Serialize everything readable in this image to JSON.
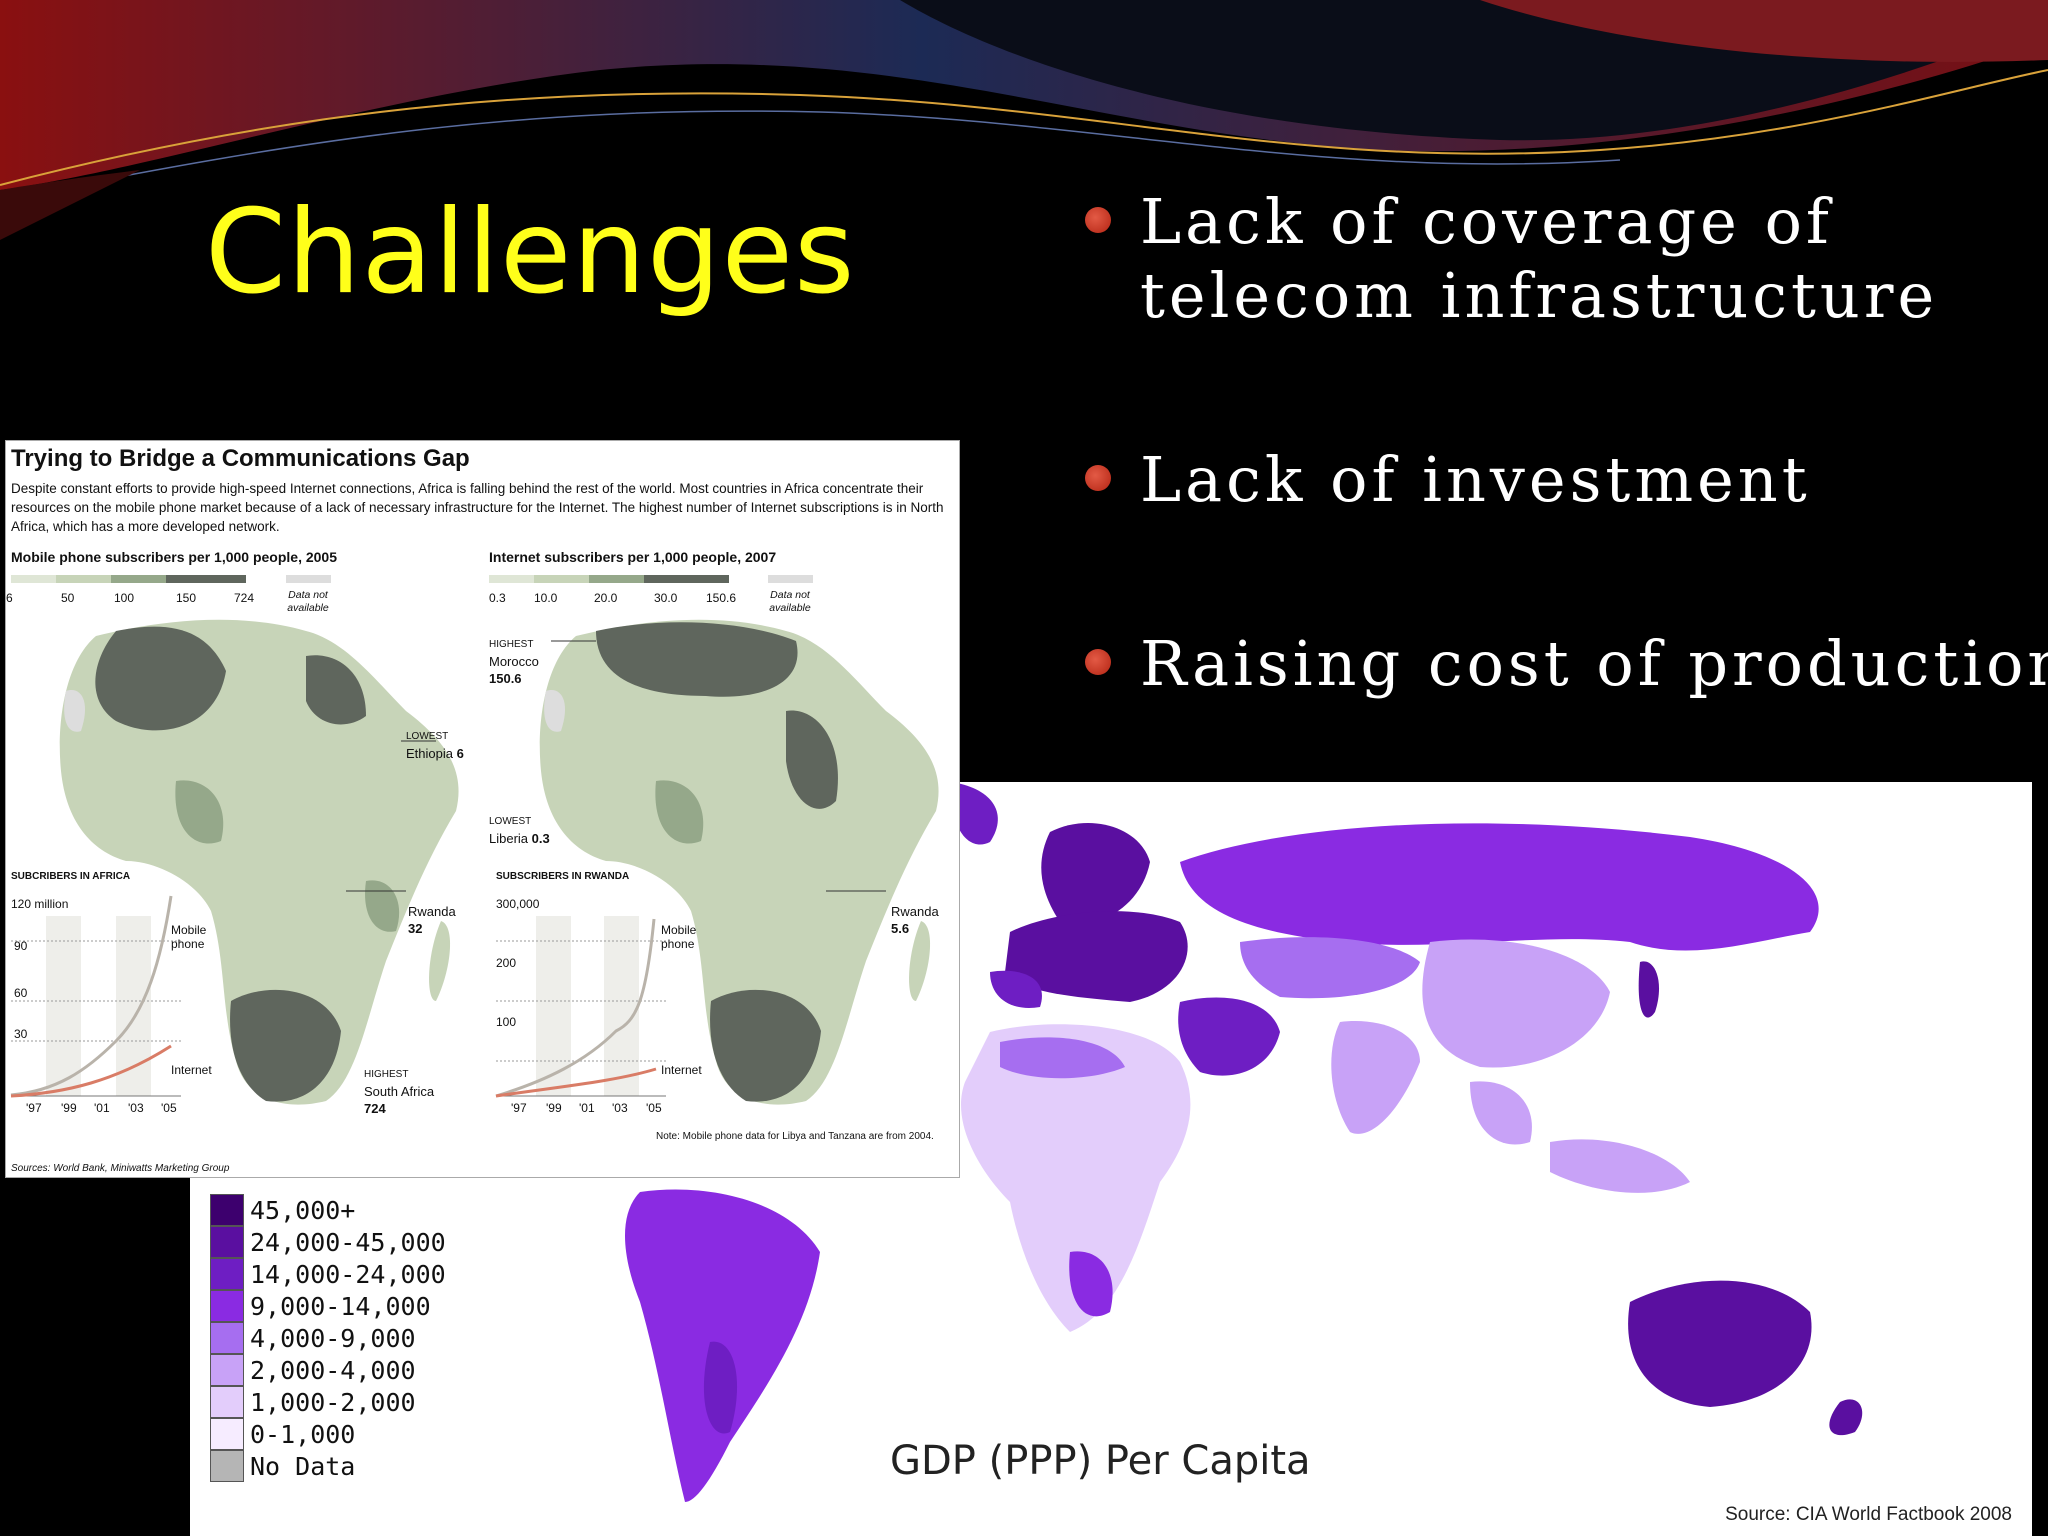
{
  "slide": {
    "title": "Challenges",
    "bullets": [
      {
        "text": "Lack of coverage of\ntelecom infrastructure"
      },
      {
        "text": "Lack of investment"
      },
      {
        "text": "Raising cost of production"
      }
    ]
  },
  "africa_graphic": {
    "title": "Trying to Bridge a Communications Gap",
    "intro": "Despite constant efforts to provide high-speed Internet connections, Africa is falling behind the rest of the world. Most countries in Africa concentrate their resources on the mobile phone market because of a lack of necessary infrastructure for the Internet. The highest number of Internet subscriptions is in North Africa, which has a more developed network.",
    "mobile_map": {
      "heading": "Mobile phone subscribers per 1,000 people, 2005",
      "scale_labels": [
        "6",
        "50",
        "100",
        "150",
        "724"
      ],
      "not_available": "Data not available",
      "lowest_label": "LOWEST",
      "lowest_country": "Ethiopia",
      "lowest_value": "6",
      "rwanda_label": "Rwanda",
      "rwanda_value": "32",
      "highest_label": "HIGHEST",
      "highest_country": "South Africa",
      "highest_value": "724"
    },
    "internet_map": {
      "heading": "Internet subscribers per 1,000 people, 2007",
      "scale_labels": [
        "0.3",
        "10.0",
        "20.0",
        "30.0",
        "150.6"
      ],
      "not_available": "Data not available",
      "highest_label": "HIGHEST",
      "highest_country": "Morocco",
      "highest_value": "150.6",
      "lowest_label": "LOWEST",
      "lowest_country": "Liberia",
      "lowest_value": "0.3",
      "rwanda_label": "Rwanda",
      "rwanda_value": "5.6"
    },
    "africa_chart": {
      "heading": "SUBCRIBERS IN AFRICA",
      "y_labels": [
        "120 million",
        "90",
        "60",
        "30"
      ],
      "x_labels": [
        "'97",
        "'99",
        "'01",
        "'03",
        "'05"
      ],
      "mobile_label": "Mobile phone",
      "internet_label": "Internet"
    },
    "rwanda_chart": {
      "heading": "SUBSCRIBERS IN RWANDA",
      "y_labels": [
        "300,000",
        "200",
        "100"
      ],
      "x_labels": [
        "'97",
        "'99",
        "'01",
        "'03",
        "'05"
      ],
      "mobile_label": "Mobile phone",
      "internet_label": "Internet"
    },
    "note": "Note: Mobile phone data for Libya and Tanzana are from 2004.",
    "sources": "Sources: World Bank, Miniwatts Marketing Group"
  },
  "chart_data": [
    {
      "type": "line",
      "title": "SUBCRIBERS IN AFRICA",
      "x": [
        "'97",
        "'99",
        "'01",
        "'03",
        "'05"
      ],
      "y_unit": "million",
      "ylim": [
        0,
        120
      ],
      "series": [
        {
          "name": "Mobile phone",
          "values": [
            1,
            8,
            25,
            52,
            115
          ]
        },
        {
          "name": "Internet",
          "values": [
            0.5,
            2,
            5,
            12,
            25
          ]
        }
      ]
    },
    {
      "type": "line",
      "title": "SUBSCRIBERS IN RWANDA",
      "x": [
        "'97",
        "'99",
        "'01",
        "'03",
        "'05"
      ],
      "ylim": [
        0,
        300000
      ],
      "series": [
        {
          "name": "Mobile phone",
          "values": [
            0,
            15000,
            60000,
            130000,
            290000
          ]
        },
        {
          "name": "Internet",
          "values": [
            0,
            3000,
            12000,
            25000,
            40000
          ]
        }
      ]
    }
  ],
  "world_map": {
    "title": "GDP (PPP) Per Capita",
    "source": "Source: CIA World Factbook 2008",
    "legend": [
      {
        "label": "45,000+",
        "color": "#3d006e"
      },
      {
        "label": "24,000-45,000",
        "color": "#5a0fa0"
      },
      {
        "label": "14,000-24,000",
        "color": "#6e1ec3"
      },
      {
        "label": "9,000-14,000",
        "color": "#8a2be2"
      },
      {
        "label": "4,000-9,000",
        "color": "#a66ef0"
      },
      {
        "label": "2,000-4,000",
        "color": "#c8a2f7"
      },
      {
        "label": "1,000-2,000",
        "color": "#e3cdfb"
      },
      {
        "label": "0-1,000",
        "color": "#f6ecff"
      },
      {
        "label": "No Data",
        "color": "#b5b5b5"
      }
    ]
  },
  "colors": {
    "title": "#ffff1a",
    "bullet": "#c0301c",
    "africa_dark": "#5f665d",
    "africa_mid": "#95a88a",
    "africa_light": "#c7d4b8"
  }
}
